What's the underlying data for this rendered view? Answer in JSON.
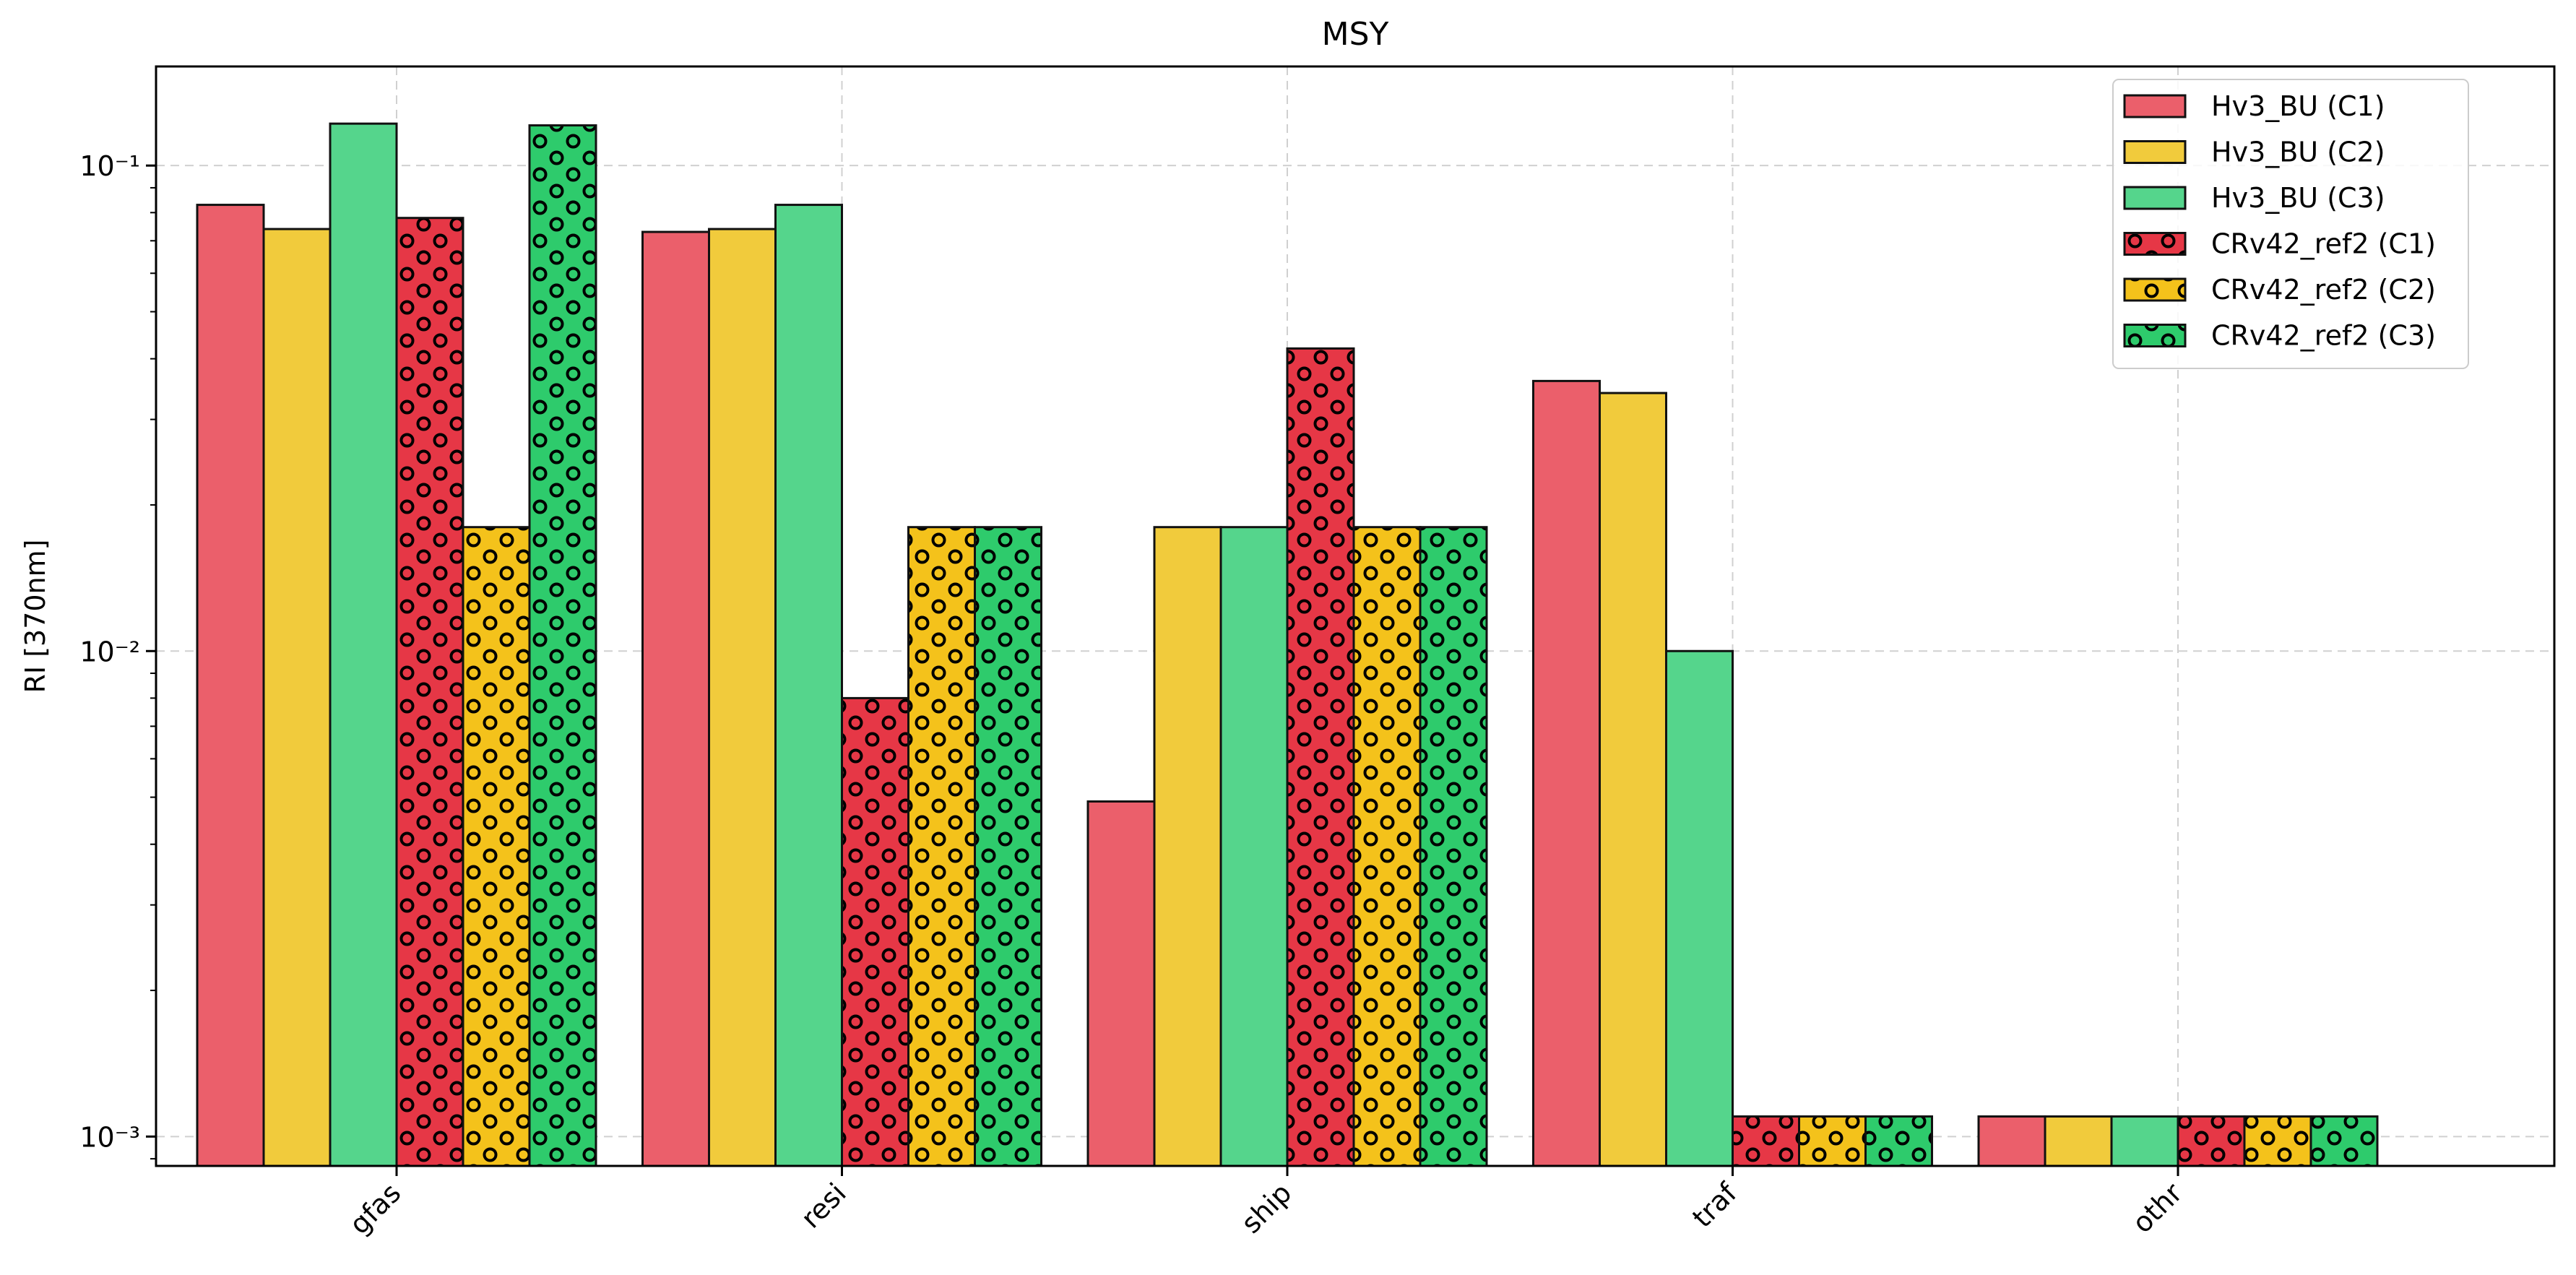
{
  "chart_data": {
    "type": "bar",
    "title": "MSY",
    "xlabel": "",
    "ylabel": "RI [370nm]",
    "yscale": "log",
    "ylim": [
      0.00087,
      0.16
    ],
    "yticks": [
      {
        "value": 0.1,
        "label": "10⁻¹"
      },
      {
        "value": 0.01,
        "label": "10⁻²"
      },
      {
        "value": 0.001,
        "label": "10⁻³"
      }
    ],
    "categories": [
      "gfas",
      "resi",
      "ship",
      "traf",
      "othr"
    ],
    "grid": true,
    "legend_position": "top-right",
    "series": [
      {
        "name": "Hv3_BU (C1)",
        "color": "#eb5f6b",
        "hatch": "none",
        "values": [
          0.083,
          0.073,
          0.0049,
          0.036,
          0.0011
        ]
      },
      {
        "name": "Hv3_BU (C2)",
        "color": "#f1cb3c",
        "hatch": "none",
        "values": [
          0.074,
          0.074,
          0.018,
          0.034,
          0.0011
        ]
      },
      {
        "name": "Hv3_BU (C3)",
        "color": "#55d58c",
        "hatch": "none",
        "values": [
          0.122,
          0.083,
          0.018,
          0.01,
          0.0011
        ]
      },
      {
        "name": "CRv42_ref2 (C1)",
        "color": "#e63746",
        "hatch": "circles",
        "values": [
          0.078,
          0.008,
          0.042,
          0.0011,
          0.0011
        ]
      },
      {
        "name": "CRv42_ref2 (C2)",
        "color": "#f4c21b",
        "hatch": "circles",
        "values": [
          0.018,
          0.018,
          0.018,
          0.0011,
          0.0011
        ]
      },
      {
        "name": "CRv42_ref2 (C3)",
        "color": "#2ecb6c",
        "hatch": "circles",
        "values": [
          0.121,
          0.018,
          0.018,
          0.0011,
          0.0011
        ]
      }
    ]
  }
}
